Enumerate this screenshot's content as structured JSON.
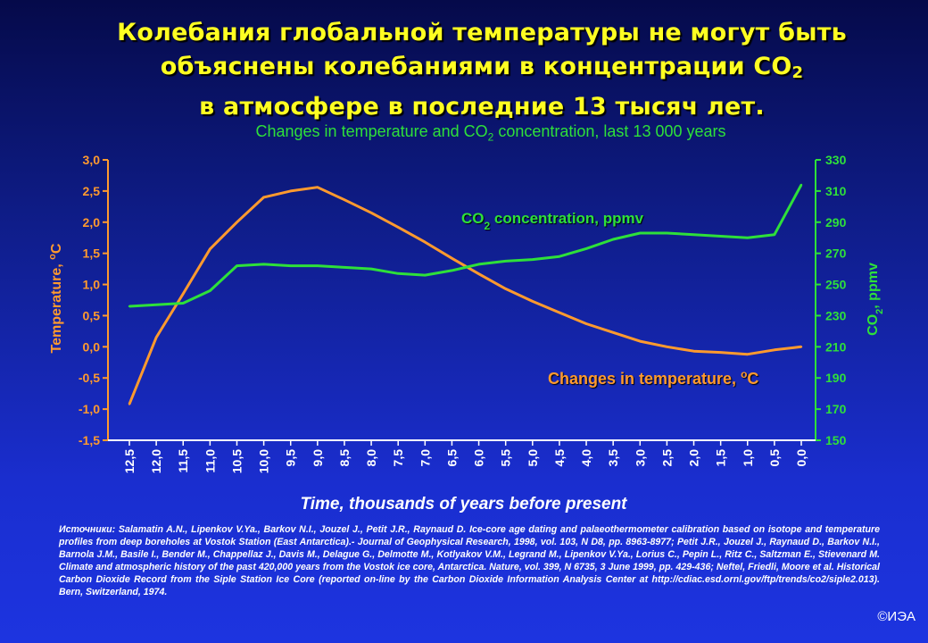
{
  "title": {
    "line1": "Колебания глобальной температуры не могут быть",
    "line2_pre": "объяснены колебаниями в концентрации CO",
    "line2_sub": "2",
    "line3": "в атмосфере в последние 13 тысяч лет."
  },
  "subtitle": {
    "pre": "Changes in temperature and CO",
    "sub": "2",
    "post": " concentration, last 13 000 years"
  },
  "chart_data": {
    "type": "line",
    "xlabel": "Time, thousands of years before present",
    "x": [
      12.5,
      12.0,
      11.5,
      11.0,
      10.5,
      10.0,
      9.5,
      9.0,
      8.5,
      8.0,
      7.5,
      7.0,
      6.5,
      6.0,
      5.5,
      5.0,
      4.5,
      4.0,
      3.5,
      3.0,
      2.5,
      2.0,
      1.5,
      1.0,
      0.5,
      0.0
    ],
    "x_tick_labels": [
      "12,5",
      "12,0",
      "11,5",
      "11,0",
      "10,5",
      "10,0",
      "9,5",
      "9,0",
      "8,5",
      "8,0",
      "7,5",
      "7,0",
      "6,5",
      "6,0",
      "5,5",
      "5,0",
      "4,5",
      "4,0",
      "3,5",
      "3,0",
      "2,5",
      "2,0",
      "1,5",
      "1,0",
      "0,5",
      "0,0"
    ],
    "x_reversed": true,
    "y_left": {
      "label": "Temperature, ",
      "label_unit": "oC",
      "range": [
        -1.5,
        3.0
      ],
      "ticks": [
        3.0,
        2.5,
        2.0,
        1.5,
        1.0,
        0.5,
        0.0,
        -0.5,
        -1.0,
        -1.5
      ],
      "tick_labels": [
        "3,0",
        "2,5",
        "2,0",
        "1,5",
        "1,0",
        "0,5",
        "0,0",
        "-0,5",
        "-1,0",
        "-1,5"
      ]
    },
    "y_right": {
      "label_pre": "CO",
      "label_sub": "2",
      "label_post": ", ppmv",
      "range": [
        150,
        330
      ],
      "ticks": [
        330,
        310,
        290,
        270,
        250,
        230,
        210,
        190,
        170,
        150
      ],
      "tick_labels": [
        "330",
        "310",
        "290",
        "270",
        "250",
        "230",
        "210",
        "190",
        "170",
        "150"
      ]
    },
    "series": [
      {
        "name": "Changes in temperature, oC",
        "axis": "left",
        "color": "#ff9a2e",
        "points": [
          [
            12.5,
            -0.92
          ],
          [
            12.0,
            0.15
          ],
          [
            11.5,
            0.85
          ],
          [
            11.0,
            1.57
          ],
          [
            10.5,
            2.0
          ],
          [
            10.0,
            2.4
          ],
          [
            9.5,
            2.5
          ],
          [
            9.0,
            2.56
          ],
          [
            8.5,
            2.36
          ],
          [
            8.0,
            2.15
          ],
          [
            7.5,
            1.92
          ],
          [
            7.0,
            1.68
          ],
          [
            6.5,
            1.42
          ],
          [
            6.0,
            1.17
          ],
          [
            5.5,
            0.93
          ],
          [
            5.0,
            0.73
          ],
          [
            4.5,
            0.55
          ],
          [
            4.0,
            0.37
          ],
          [
            3.5,
            0.23
          ],
          [
            3.0,
            0.09
          ],
          [
            2.5,
            0.0
          ],
          [
            2.0,
            -0.07
          ],
          [
            1.5,
            -0.09
          ],
          [
            1.0,
            -0.12
          ],
          [
            0.5,
            -0.05
          ],
          [
            0.0,
            0.0
          ]
        ]
      },
      {
        "name": "CO2 concentration, ppmv",
        "axis": "right",
        "color": "#2ee03a",
        "points": [
          [
            12.5,
            236
          ],
          [
            12.0,
            237
          ],
          [
            11.5,
            238
          ],
          [
            11.0,
            246
          ],
          [
            10.5,
            262
          ],
          [
            10.0,
            263
          ],
          [
            9.5,
            262
          ],
          [
            9.0,
            262
          ],
          [
            8.5,
            261
          ],
          [
            8.0,
            260
          ],
          [
            7.5,
            257
          ],
          [
            7.0,
            256
          ],
          [
            6.5,
            259
          ],
          [
            6.0,
            263
          ],
          [
            5.5,
            265
          ],
          [
            5.0,
            266
          ],
          [
            4.5,
            268
          ],
          [
            4.0,
            273
          ],
          [
            3.5,
            279
          ],
          [
            3.0,
            283
          ],
          [
            2.5,
            283
          ],
          [
            2.0,
            282
          ],
          [
            1.5,
            281
          ],
          [
            1.0,
            280
          ],
          [
            0.5,
            282
          ],
          [
            0.0,
            314
          ]
        ]
      }
    ],
    "annotations": {
      "co2": {
        "pre": "CO",
        "sub": "2",
        "post": " concentration, ppmv"
      },
      "temp": {
        "pre": "Changes in temperature, ",
        "sup": "o",
        "post": "C"
      }
    },
    "grid": false
  },
  "sources": "Источники: Salamatin A.N., Lipenkov V.Ya., Barkov N.I., Jouzel J., Petit J.R., Raynaud D. Ice-core age dating and palaeothermometer calibration based on isotope and temperature profiles from deep boreholes at Vostok Station (East Antarctica).- Journal of Geophysical Research, 1998, vol. 103, N D8, pp. 8963-8977; Petit J.R., Jouzel J., Raynaud D., Barkov N.I., Barnola J.M., Basile I., Bender M., Chappellaz J., Davis M., Delague G., Delmotte M., Kotlyakov V.M., Legrand M., Lipenkov V.Ya., Lorius C., Pepin L., Ritz C., Saltzman E., Stievenard M. Climate and atmospheric history of the past 420,000 years from the Vostok ice core, Antarctica. Nature, vol. 399, N 6735, 3 June 1999, pp. 429-436; Neftel, Friedli, Moore et al. Historical Carbon Dioxide Record from the Siple Station Ice Core (reported on-line by the Carbon Dioxide Information Analysis Center at http://cdiac.esd.ornl.gov/ftp/trends/co2/siple2.013). Bern, Switzerland, 1974.",
  "copyright": "©ИЭА",
  "colors": {
    "title": "#ffff22",
    "temperature": "#ff9a2e",
    "co2": "#2ee03a",
    "axis_text": "#ffffff"
  }
}
